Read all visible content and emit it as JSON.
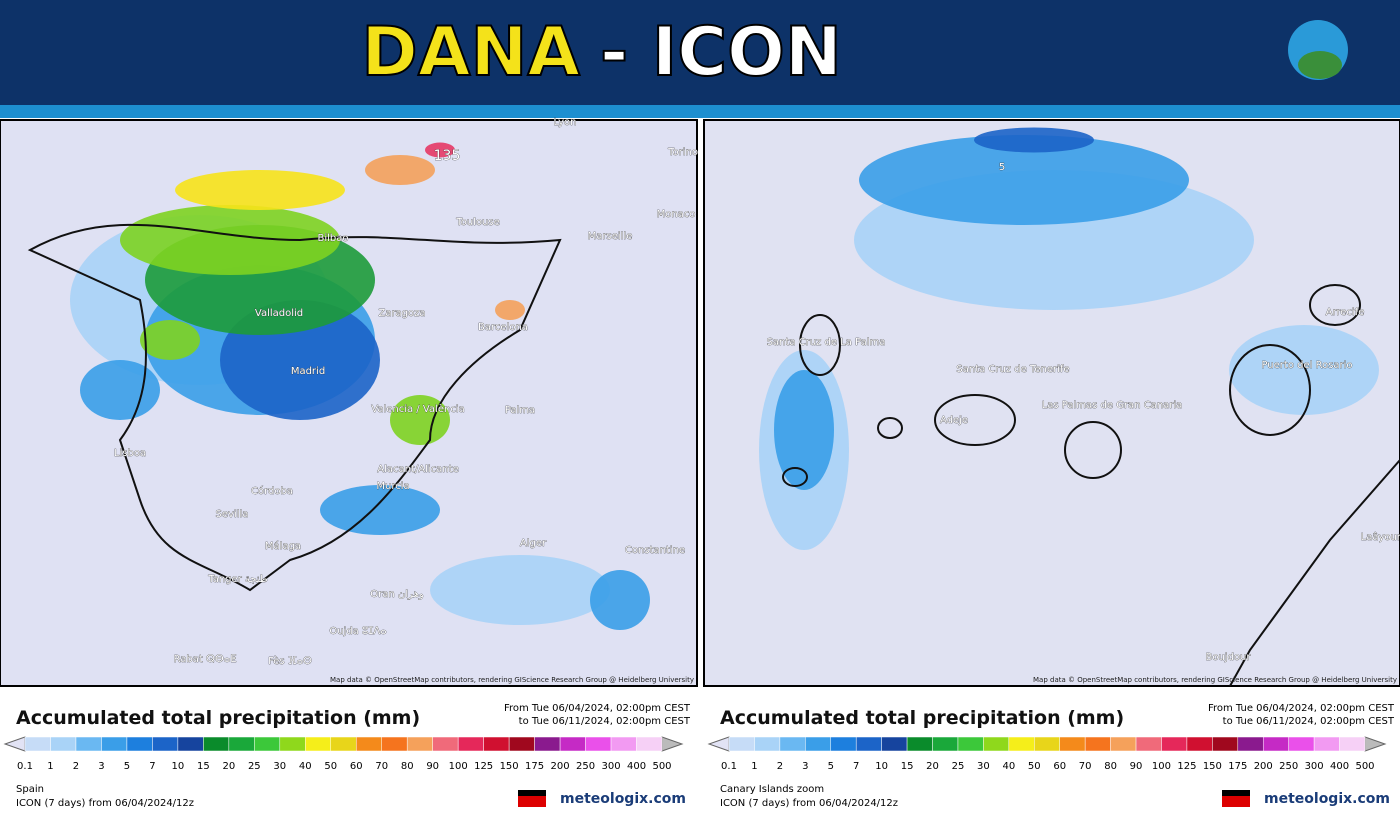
{
  "header": {
    "title_main": "DANA",
    "title_rest": "- ICON"
  },
  "panels": [
    {
      "cities": [
        "Lyon",
        "Torino",
        "Monaco",
        "Marseille",
        "Toulouse",
        "Bilbao",
        "Barcelona",
        "Zaragoza",
        "Valladolid",
        "Madrid",
        "Valencia / València",
        "Palma",
        "Lisboa",
        "Córdoba",
        "Sevilla",
        "Alacant/Alicante",
        "Murcia",
        "Málaga",
        "Tanger ﻃﻨﺠﺔ",
        "Alger",
        "Constantine",
        "Oran ﻭﻫﺮﺍﻥ",
        "Oujda ⵓⵊⴷⴰ",
        "Fès ⴼⴰⵙ",
        "Rabat ⵕⴱⴰⵟ",
        "135"
      ],
      "attribution": "Map data © OpenStreetMap contributors, rendering GIScience Research Group @ Heidelberg University",
      "legend_title": "Accumulated total precipitation (mm)",
      "from": "From Tue 06/04/2024, 02:00pm CEST",
      "to": "to Tue 06/11/2024, 02:00pm CEST",
      "region": "Spain",
      "model": "ICON (7 days)  from  06/04/2024/12z",
      "brand": "meteologix.com"
    },
    {
      "cities": [
        "Santa Cruz de La Palma",
        "Santa Cruz de Tenerife",
        "Adeje",
        "Las Palmas de Gran Canaria",
        "Puerto del Rosario",
        "Arrecife",
        "Laâyoune",
        "Boujdour",
        "5"
      ],
      "attribution": "Map data © OpenStreetMap contributors, rendering GIScience Research Group @ Heidelberg University",
      "legend_title": "Accumulated total precipitation (mm)",
      "from": "From Tue 06/04/2024, 02:00pm CEST",
      "to": "to Tue 06/11/2024, 02:00pm CEST",
      "region": "Canary Islands zoom",
      "model": "ICON (7 days)  from  06/04/2024/12z",
      "brand": "meteologix.com"
    }
  ],
  "scale": [
    "0.1",
    "1",
    "2",
    "3",
    "5",
    "7",
    "10",
    "15",
    "20",
    "25",
    "30",
    "40",
    "50",
    "60",
    "70",
    "80",
    "90",
    "100",
    "125",
    "150",
    "175",
    "200",
    "250",
    "300",
    "400",
    "500"
  ]
}
